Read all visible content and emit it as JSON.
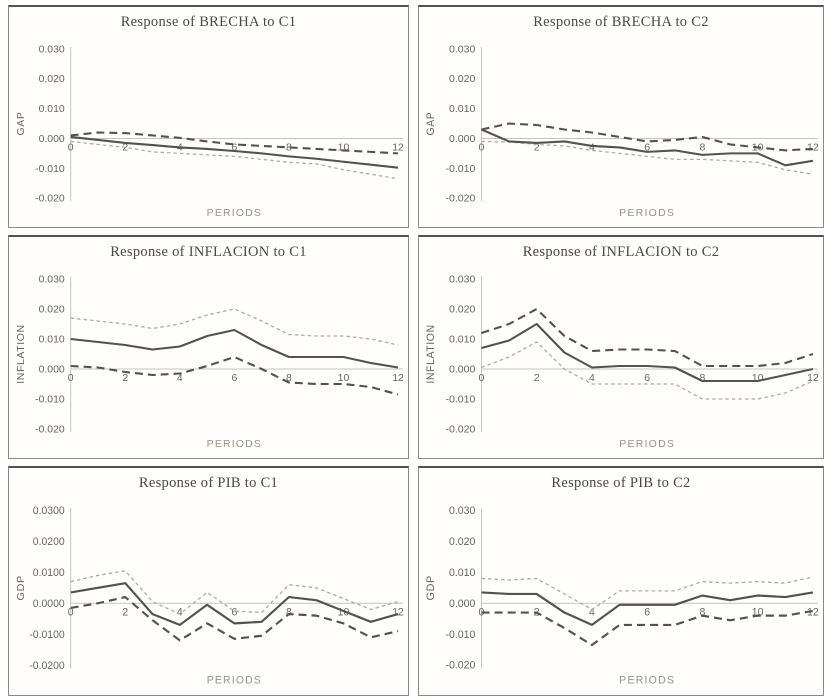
{
  "page": {
    "background": "#ffffff",
    "description_colors": {
      "solid_line": "#555150",
      "dark_dashed_line": "#555150",
      "light_dashed_line": "#b3a9a1",
      "axis_line": "#c7c3bd",
      "tick_text": "#6a6460",
      "title_text": "#4c4844",
      "period_label_text": "#9a9089",
      "panel_border": "#8d8882"
    }
  },
  "chart_data": [
    {
      "type": "line",
      "title": "Response of BRECHA to C1",
      "ylabel": "GAP",
      "xlabel": "PERIODS",
      "x": [
        0,
        1,
        2,
        3,
        4,
        5,
        6,
        7,
        8,
        9,
        10,
        11,
        12
      ],
      "xticks": [
        0,
        2,
        4,
        6,
        8,
        10,
        12
      ],
      "ylim": [
        -0.02,
        0.03
      ],
      "ytick_values": [
        0.03,
        0.02,
        0.01,
        0.0,
        -0.01,
        -0.02
      ],
      "ytick_labels": [
        "0.030",
        "0.020",
        "0.010",
        "0.000",
        "-0.010",
        "-0.020"
      ],
      "grid": false,
      "legend_position": "none",
      "series": [
        {
          "name": "upper confidence band",
          "style": "dark-dashed",
          "values": [
            0.001,
            0.002,
            0.0018,
            0.001,
            0.0002,
            -0.001,
            -0.002,
            -0.0025,
            -0.003,
            -0.0035,
            -0.004,
            -0.0045,
            -0.005
          ]
        },
        {
          "name": "lower confidence band",
          "style": "light-dashed",
          "values": [
            -0.001,
            -0.002,
            -0.003,
            -0.0045,
            -0.005,
            -0.0055,
            -0.006,
            -0.007,
            -0.008,
            -0.0085,
            -0.0105,
            -0.012,
            -0.0135
          ]
        },
        {
          "name": "response",
          "style": "solid",
          "values": [
            0.0005,
            -0.0005,
            -0.0015,
            -0.0022,
            -0.003,
            -0.0035,
            -0.0042,
            -0.005,
            -0.006,
            -0.0068,
            -0.0078,
            -0.0088,
            -0.0098
          ]
        }
      ]
    },
    {
      "type": "line",
      "title": "Response of BRECHA to C2",
      "ylabel": "GAP",
      "xlabel": "PERIODS",
      "x": [
        0,
        1,
        2,
        3,
        4,
        5,
        6,
        7,
        8,
        9,
        10,
        11,
        12
      ],
      "xticks": [
        0,
        2,
        4,
        6,
        8,
        10,
        12
      ],
      "ylim": [
        -0.02,
        0.03
      ],
      "ytick_values": [
        0.03,
        0.02,
        0.01,
        0.0,
        -0.01,
        -0.02
      ],
      "ytick_labels": [
        "0.030",
        "0.020",
        "0.010",
        "0.000",
        "-0.010",
        "-0.020"
      ],
      "grid": false,
      "legend_position": "none",
      "series": [
        {
          "name": "upper confidence band",
          "style": "dark-dashed",
          "values": [
            0.003,
            0.005,
            0.0045,
            0.003,
            0.002,
            0.0005,
            -0.001,
            -0.0005,
            0.0005,
            -0.002,
            -0.003,
            -0.004,
            -0.0035
          ]
        },
        {
          "name": "lower confidence band",
          "style": "light-dashed",
          "values": [
            -0.001,
            -0.0012,
            -0.002,
            -0.0025,
            -0.004,
            -0.005,
            -0.006,
            -0.007,
            -0.007,
            -0.0075,
            -0.008,
            -0.0105,
            -0.012
          ]
        },
        {
          "name": "response",
          "style": "solid",
          "values": [
            0.003,
            -0.001,
            -0.0015,
            -0.001,
            -0.0025,
            -0.003,
            -0.0045,
            -0.004,
            -0.0055,
            -0.005,
            -0.005,
            -0.009,
            -0.0075
          ]
        }
      ]
    },
    {
      "type": "line",
      "title": "Response of INFLACION to C1",
      "ylabel": "INFLATION",
      "xlabel": "PERIODS",
      "x": [
        0,
        1,
        2,
        3,
        4,
        5,
        6,
        7,
        8,
        9,
        10,
        11,
        12
      ],
      "xticks": [
        0,
        2,
        4,
        6,
        8,
        10,
        12
      ],
      "ylim": [
        -0.02,
        0.03
      ],
      "ytick_values": [
        0.03,
        0.02,
        0.01,
        0.0,
        -0.01,
        -0.02
      ],
      "ytick_labels": [
        "0.030",
        "0.020",
        "0.010",
        "0.000",
        "-0.010",
        "-0.020"
      ],
      "grid": false,
      "legend_position": "none",
      "series": [
        {
          "name": "upper confidence band",
          "style": "light-dashed",
          "values": [
            0.017,
            0.016,
            0.015,
            0.0135,
            0.015,
            0.018,
            0.02,
            0.016,
            0.0115,
            0.011,
            0.011,
            0.01,
            0.008
          ]
        },
        {
          "name": "lower confidence band",
          "style": "dark-dashed",
          "values": [
            0.001,
            0.0005,
            -0.001,
            -0.002,
            -0.0015,
            0.001,
            0.004,
            0.0,
            -0.0045,
            -0.005,
            -0.005,
            -0.006,
            -0.0085
          ]
        },
        {
          "name": "response",
          "style": "solid",
          "values": [
            0.01,
            0.009,
            0.008,
            0.0065,
            0.0075,
            0.011,
            0.013,
            0.008,
            0.004,
            0.004,
            0.004,
            0.002,
            0.0005
          ]
        }
      ]
    },
    {
      "type": "line",
      "title": "Response of INFLACION to C2",
      "ylabel": "INFLATION",
      "xlabel": "PERIODS",
      "x": [
        0,
        1,
        2,
        3,
        4,
        5,
        6,
        7,
        8,
        9,
        10,
        11,
        12
      ],
      "xticks": [
        0,
        2,
        4,
        6,
        8,
        10,
        12
      ],
      "ylim": [
        -0.02,
        0.03
      ],
      "ytick_values": [
        0.03,
        0.02,
        0.01,
        0.0,
        -0.01,
        -0.02
      ],
      "ytick_labels": [
        "0.030",
        "0.020",
        "0.010",
        "0.000",
        "-0.010",
        "-0.020"
      ],
      "grid": false,
      "legend_position": "none",
      "series": [
        {
          "name": "upper confidence band",
          "style": "dark-dashed",
          "values": [
            0.012,
            0.015,
            0.02,
            0.011,
            0.006,
            0.0065,
            0.0065,
            0.006,
            0.001,
            0.001,
            0.001,
            0.002,
            0.005
          ]
        },
        {
          "name": "lower confidence band",
          "style": "light-dashed",
          "values": [
            0.0005,
            0.004,
            0.009,
            0.0,
            -0.005,
            -0.005,
            -0.005,
            -0.005,
            -0.01,
            -0.01,
            -0.01,
            -0.008,
            -0.004
          ]
        },
        {
          "name": "response",
          "style": "solid",
          "values": [
            0.007,
            0.0095,
            0.015,
            0.0055,
            0.0005,
            0.001,
            0.001,
            0.0005,
            -0.004,
            -0.004,
            -0.004,
            -0.002,
            0.0
          ]
        }
      ]
    },
    {
      "type": "line",
      "title": "Response of PIB to C1",
      "ylabel": "GDP",
      "xlabel": "PERIODS",
      "x": [
        0,
        1,
        2,
        3,
        4,
        5,
        6,
        7,
        8,
        9,
        10,
        11,
        12
      ],
      "xticks": [
        0,
        2,
        4,
        6,
        8,
        10,
        12
      ],
      "ylim": [
        -0.02,
        0.03
      ],
      "ytick_values": [
        0.03,
        0.02,
        0.01,
        0.0,
        -0.01,
        -0.02
      ],
      "ytick_labels": [
        "0.0300",
        "0.0200",
        "0.0100",
        "0.0000",
        "-0.0100",
        "-0.0200"
      ],
      "grid": false,
      "legend_position": "none",
      "series": [
        {
          "name": "upper confidence band",
          "style": "light-dashed",
          "values": [
            0.007,
            0.009,
            0.0105,
            0.0005,
            -0.0035,
            0.0035,
            -0.0025,
            -0.003,
            0.006,
            0.005,
            0.0015,
            -0.002,
            0.0005
          ]
        },
        {
          "name": "lower confidence band",
          "style": "dark-dashed",
          "values": [
            -0.0015,
            0.0,
            0.002,
            -0.0055,
            -0.012,
            -0.0065,
            -0.0115,
            -0.0105,
            -0.0035,
            -0.004,
            -0.0065,
            -0.011,
            -0.009
          ]
        },
        {
          "name": "response",
          "style": "solid",
          "values": [
            0.0035,
            0.005,
            0.0065,
            -0.0035,
            -0.007,
            -0.0005,
            -0.0065,
            -0.006,
            0.002,
            0.001,
            -0.0025,
            -0.006,
            -0.0035
          ]
        }
      ]
    },
    {
      "type": "line",
      "title": "Response of PIB to C2",
      "ylabel": "GDP",
      "xlabel": "PERIODS",
      "x": [
        0,
        1,
        2,
        3,
        4,
        5,
        6,
        7,
        8,
        9,
        10,
        11,
        12
      ],
      "xticks": [
        0,
        2,
        4,
        6,
        8,
        10,
        12
      ],
      "ylim": [
        -0.02,
        0.03
      ],
      "ytick_values": [
        0.03,
        0.02,
        0.01,
        0.0,
        -0.01,
        -0.02
      ],
      "ytick_labels": [
        "0.030",
        "0.020",
        "0.010",
        "0.000",
        "-0.010",
        "-0.020"
      ],
      "grid": false,
      "legend_position": "none",
      "series": [
        {
          "name": "upper confidence band",
          "style": "light-dashed",
          "values": [
            0.008,
            0.0075,
            0.008,
            0.003,
            -0.002,
            0.004,
            0.004,
            0.004,
            0.007,
            0.0065,
            0.007,
            0.0065,
            0.0085
          ]
        },
        {
          "name": "lower confidence band",
          "style": "dark-dashed",
          "values": [
            -0.003,
            -0.003,
            -0.003,
            -0.008,
            -0.0135,
            -0.007,
            -0.007,
            -0.007,
            -0.004,
            -0.0055,
            -0.004,
            -0.004,
            -0.0025
          ]
        },
        {
          "name": "response",
          "style": "solid",
          "values": [
            0.0035,
            0.003,
            0.003,
            -0.003,
            -0.007,
            -0.0005,
            -0.0005,
            -0.0005,
            0.0025,
            0.001,
            0.0025,
            0.002,
            0.0035
          ]
        }
      ]
    }
  ]
}
